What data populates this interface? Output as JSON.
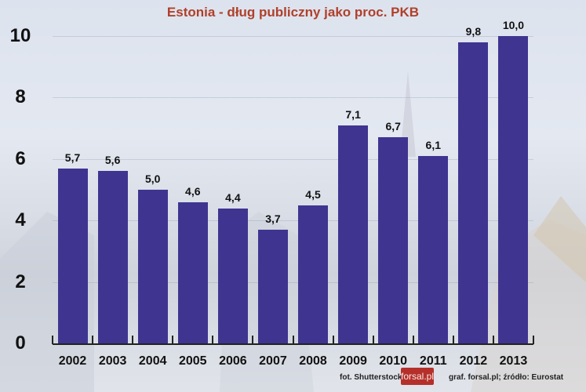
{
  "chart_data": {
    "type": "bar",
    "title": "Estonia - dług publiczny jako proc. PKB",
    "xlabel": "",
    "ylabel": "",
    "categories": [
      "2002",
      "2003",
      "2004",
      "2005",
      "2006",
      "2007",
      "2008",
      "2009",
      "2010",
      "2011",
      "2012",
      "2013"
    ],
    "values": [
      5.7,
      5.6,
      5.0,
      4.6,
      4.4,
      3.7,
      4.5,
      7.1,
      6.7,
      6.1,
      9.8,
      10.0
    ],
    "value_labels": [
      "5,7",
      "5,6",
      "5,0",
      "4,6",
      "4,4",
      "3,7",
      "4,5",
      "7,1",
      "6,7",
      "6,1",
      "9,8",
      "10,0"
    ],
    "ylim": [
      0,
      10
    ],
    "yticks": [
      "0",
      "2",
      "4",
      "6",
      "8",
      "10"
    ],
    "grid": true,
    "legend": null,
    "bar_color": "#3f3590",
    "title_color": "#b0402a"
  },
  "credits": {
    "photo": "fot. Shutterstock",
    "logo": "forsal.pl",
    "source": "graf. forsal.pl;  źródło: Eurostat"
  }
}
